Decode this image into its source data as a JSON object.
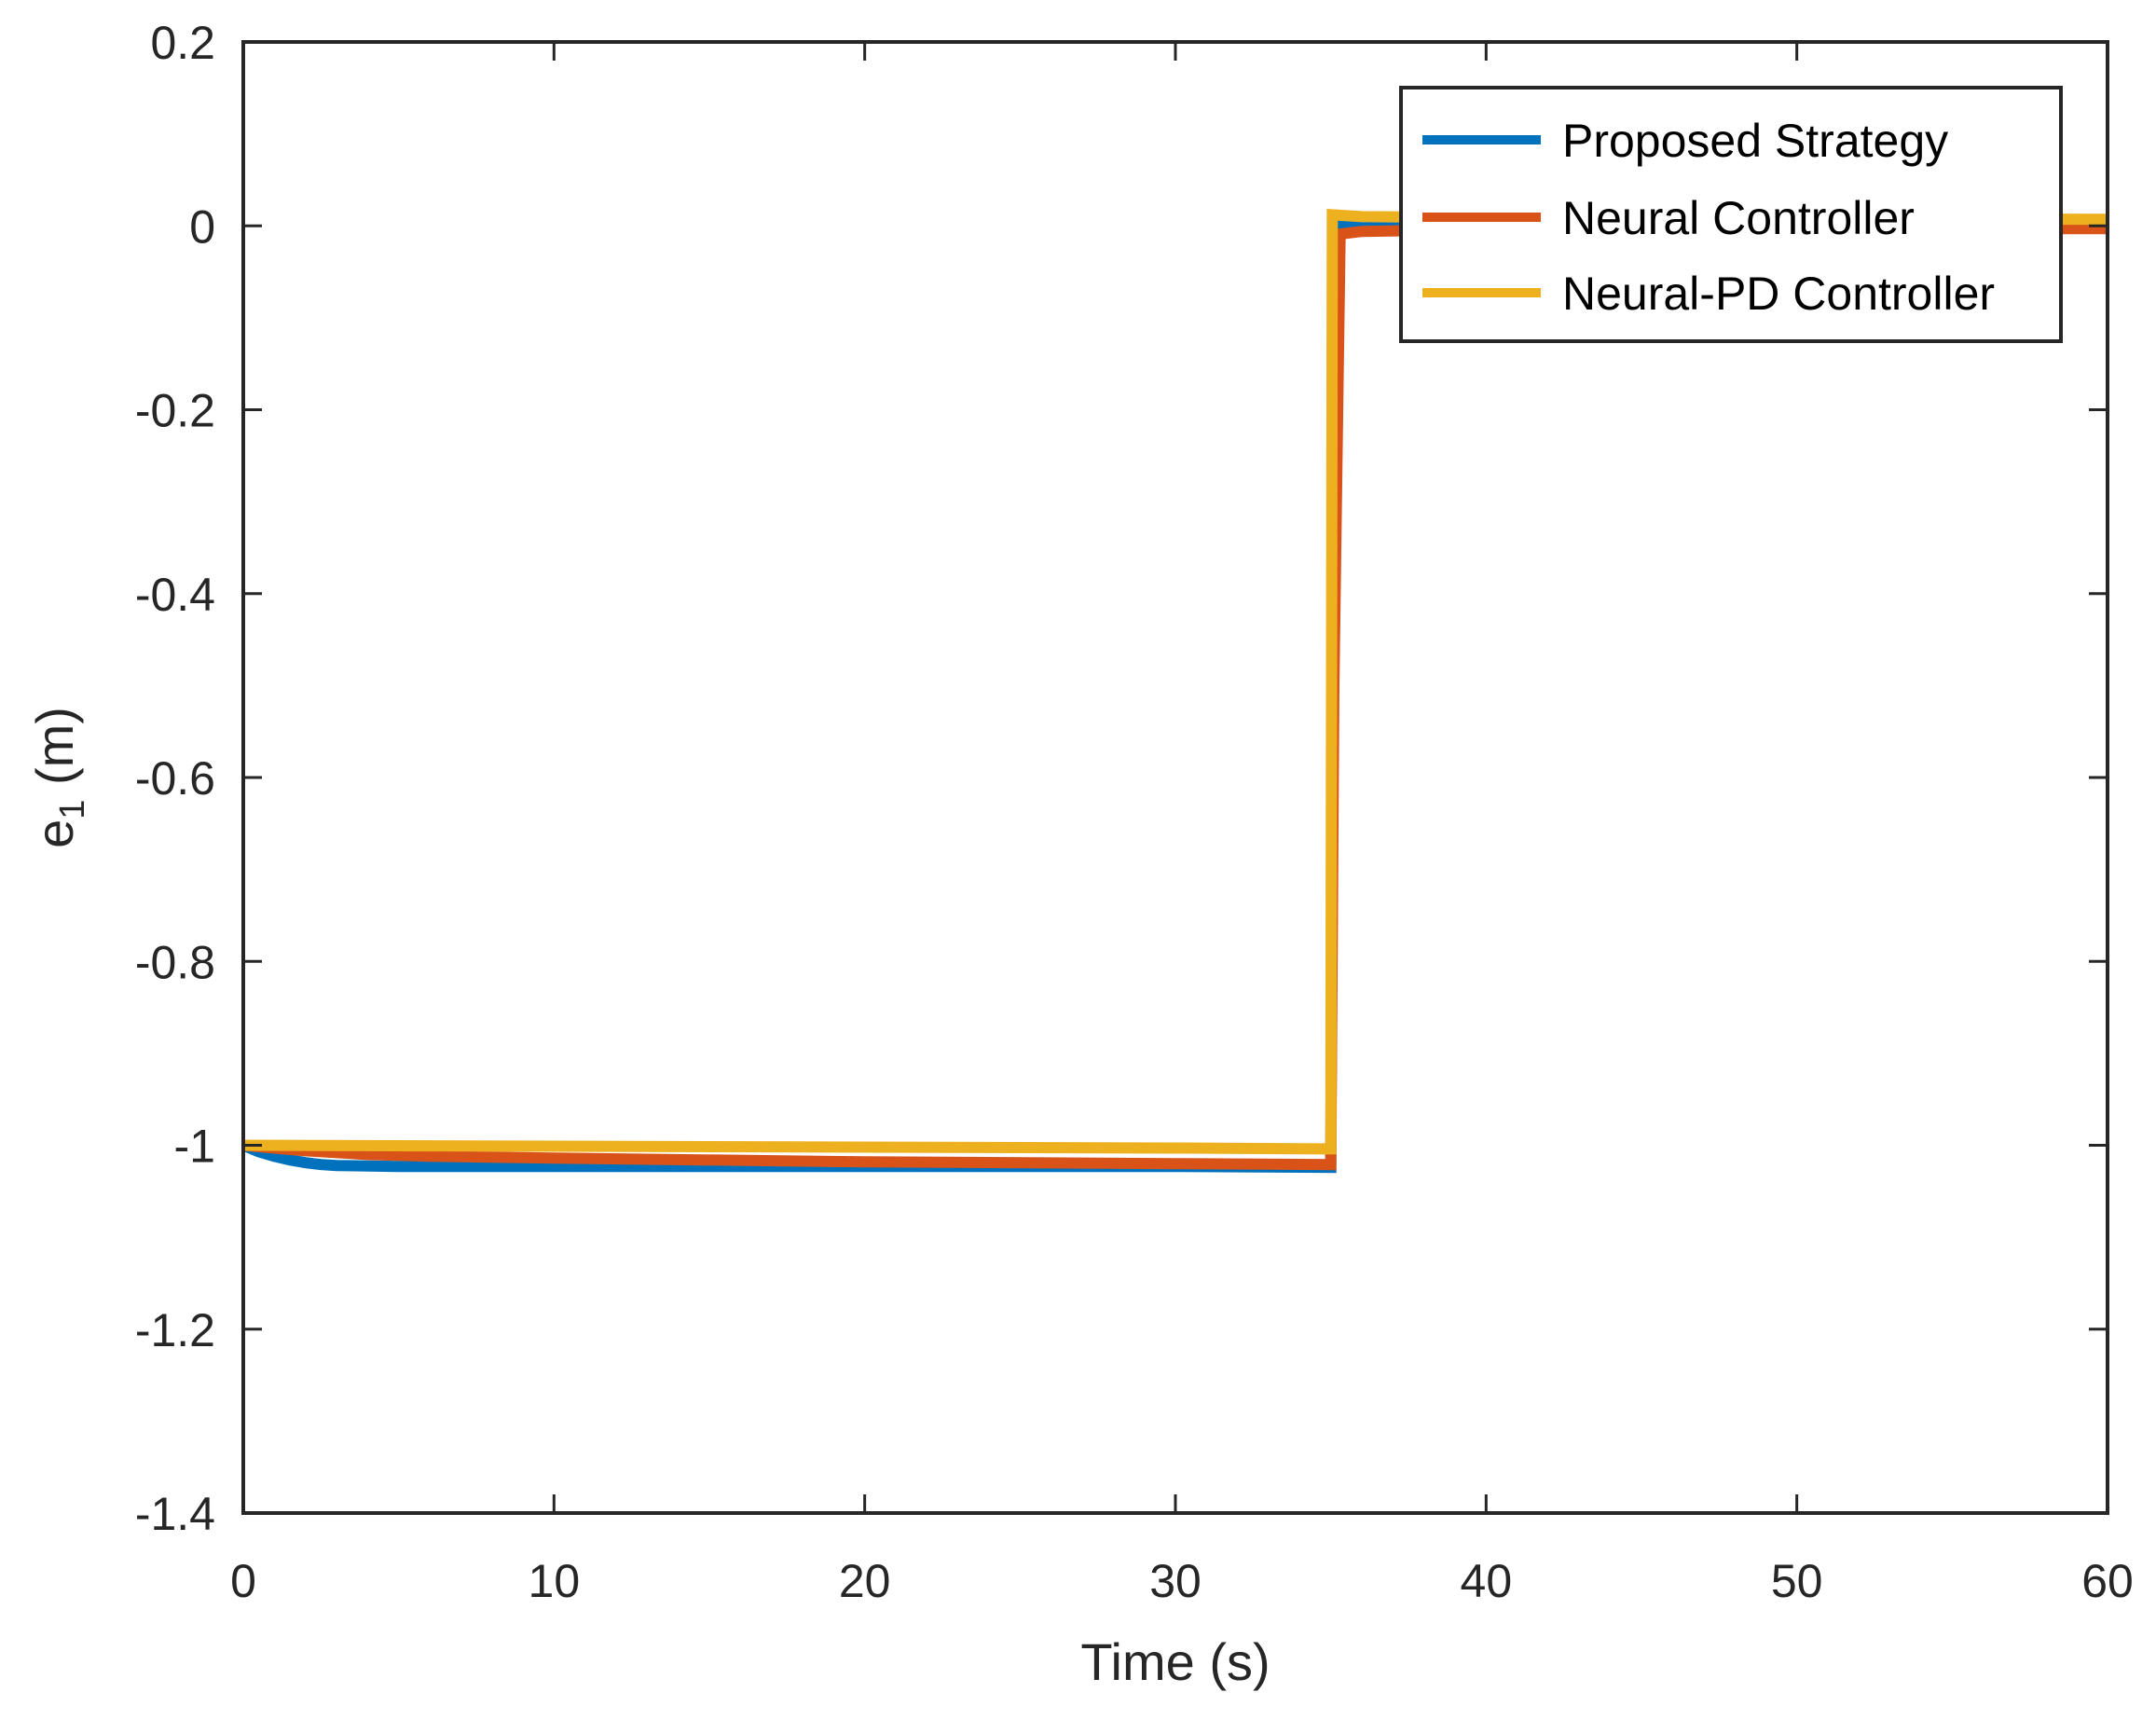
{
  "chart_data": {
    "type": "line",
    "title": "",
    "xlabel": "Time (s)",
    "ylabel": "e1 (m)",
    "ylabel_main": "e",
    "ylabel_sub": "1",
    "ylabel_unit": " (m)",
    "xlim": [
      0,
      60
    ],
    "ylim": [
      -1.4,
      0.2
    ],
    "xticks": [
      0,
      10,
      20,
      30,
      40,
      50,
      60
    ],
    "yticks": [
      0.2,
      0,
      -0.2,
      -0.4,
      -0.6,
      -0.8,
      -1,
      -1.2,
      -1.4
    ],
    "xtick_labels": [
      "0",
      "10",
      "20",
      "30",
      "40",
      "50",
      "60"
    ],
    "ytick_labels": [
      "0.2",
      "0",
      "-0.2",
      "-0.4",
      "-0.6",
      "-0.8",
      "-1",
      "-1.2",
      "-1.4"
    ],
    "grid": false,
    "legend_position": "upper right",
    "series": [
      {
        "name": "Proposed Strategy",
        "color": "#0072BD",
        "x": [
          0,
          0.5,
          1,
          1.5,
          2,
          2.5,
          3,
          5,
          10,
          20,
          30,
          35,
          35.1,
          35.3,
          36,
          40,
          50,
          60
        ],
        "y": [
          -1.0,
          -1.007,
          -1.012,
          -1.016,
          -1.019,
          -1.021,
          -1.022,
          -1.023,
          -1.023,
          -1.023,
          -1.023,
          -1.024,
          -0.3,
          0.0,
          0.001,
          0.001,
          0.0,
          0.0
        ]
      },
      {
        "name": "Neural Controller",
        "color": "#D95319",
        "x": [
          0,
          1,
          2,
          4,
          6,
          10,
          20,
          30,
          35,
          35.1,
          35.3,
          36,
          40,
          50,
          60
        ],
        "y": [
          -1.0,
          -1.003,
          -1.006,
          -1.01,
          -1.012,
          -1.014,
          -1.018,
          -1.02,
          -1.021,
          -0.5,
          -0.009,
          -0.006,
          -0.004,
          -0.003,
          -0.003
        ]
      },
      {
        "name": "Neural-PD Controller",
        "color": "#EDB120",
        "x": [
          0,
          10,
          20,
          30,
          35,
          35.05,
          36,
          40,
          50,
          60
        ],
        "y": [
          -1.0,
          -1.001,
          -1.002,
          -1.003,
          -1.004,
          0.012,
          0.01,
          0.009,
          0.008,
          0.007
        ]
      }
    ]
  },
  "legend": {
    "items": [
      {
        "label": "Proposed Strategy",
        "color": "#0072BD"
      },
      {
        "label": "Neural Controller",
        "color": "#D95319"
      },
      {
        "label": "Neural-PD Controller",
        "color": "#EDB120"
      }
    ]
  },
  "style": {
    "axis_color": "#262626",
    "background": "#ffffff"
  }
}
